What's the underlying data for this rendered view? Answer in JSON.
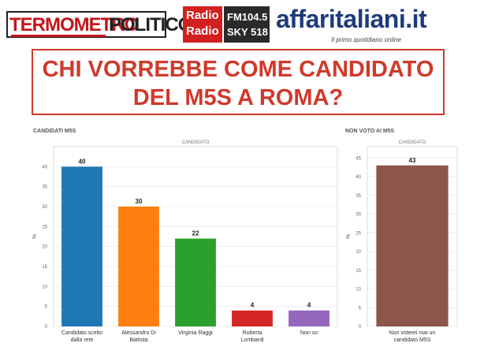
{
  "header": {
    "logo_left": {
      "part1": "TERMOMETRO",
      "part2": "POLITICO"
    },
    "logo_radio": {
      "line1": "Radio",
      "line2": "Radio",
      "freq": "FM104.5",
      "sky": "SKY 518"
    },
    "logo_right": {
      "name": "affaritaliani.it",
      "tagline": "Il primo quotidiano online"
    }
  },
  "title": {
    "line1": "CHI VORREBBE COME CANDIDATO",
    "line2": "DEL M5S A ROMA?"
  },
  "colors": {
    "title_red": "#d0392b",
    "bar_blue": "#1f77b4",
    "bar_orange": "#ff7f0e",
    "bar_green": "#2ca02c",
    "bar_red": "#d62728",
    "bar_purple": "#9467bd",
    "bar_brown": "#8c564b"
  },
  "chart_data": [
    {
      "type": "bar",
      "panel_label": "CANDIDATI M5S",
      "legend_title": "CANDIDATO",
      "ylabel": "%",
      "ylim": [
        0,
        45
      ],
      "yticks": [
        0,
        5,
        10,
        15,
        20,
        25,
        30,
        35,
        40
      ],
      "categories": [
        [
          "Candidato scelto",
          "dalla rete"
        ],
        [
          "Alessandro Di",
          "Battista"
        ],
        [
          "Virginia Raggi"
        ],
        [
          "Roberta",
          "Lombardi"
        ],
        [
          "Non so"
        ]
      ],
      "values": [
        40,
        30,
        22,
        4,
        4
      ],
      "colors": [
        "#1f77b4",
        "#ff7f0e",
        "#2ca02c",
        "#d62728",
        "#9467bd"
      ]
    },
    {
      "type": "bar",
      "panel_label": "NON VOTO AI M5S",
      "legend_title": "CANDIDATO",
      "ylabel": "%",
      "ylim": [
        0,
        48
      ],
      "yticks": [
        0,
        5,
        10,
        15,
        20,
        25,
        30,
        35,
        40,
        45
      ],
      "categories": [
        [
          "Non voterei mai un",
          "candidato M5S"
        ]
      ],
      "values": [
        43
      ],
      "colors": [
        "#8c564b"
      ]
    }
  ]
}
